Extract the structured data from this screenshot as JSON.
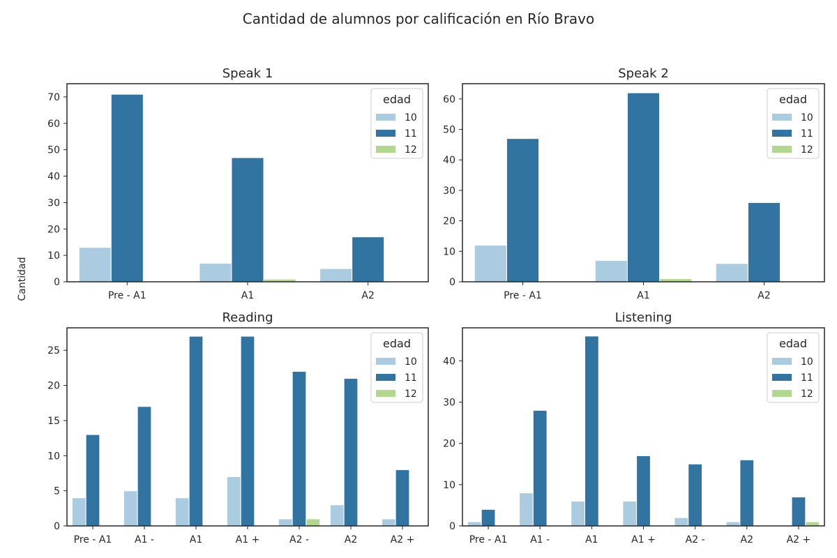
{
  "figure": {
    "title": "Cantidad de alumnos por calificación en Río Bravo",
    "ylabel": "Cantidad"
  },
  "colors": {
    "10": "#abcce0",
    "11": "#3274a1",
    "12": "#b2d88f",
    "axes": "#262626",
    "background": "#ffffff"
  },
  "chart_data": [
    {
      "type": "bar",
      "title": "Speak 1",
      "categories": [
        "Pre - A1",
        "A1",
        "A2"
      ],
      "legend_title": "edad",
      "legend_position": "top-right",
      "ylim": [
        0,
        75
      ],
      "yticks": [
        0,
        10,
        20,
        30,
        40,
        50,
        60,
        70
      ],
      "grid": false,
      "series": [
        {
          "name": "10",
          "values": [
            13,
            7,
            5
          ]
        },
        {
          "name": "11",
          "values": [
            71,
            47,
            17
          ]
        },
        {
          "name": "12",
          "values": [
            0,
            1,
            0
          ]
        }
      ]
    },
    {
      "type": "bar",
      "title": "Speak 2",
      "categories": [
        "Pre - A1",
        "A1",
        "A2"
      ],
      "legend_title": "edad",
      "legend_position": "top-right",
      "ylim": [
        0,
        65
      ],
      "yticks": [
        0,
        10,
        20,
        30,
        40,
        50,
        60
      ],
      "grid": false,
      "series": [
        {
          "name": "10",
          "values": [
            12,
            7,
            6
          ]
        },
        {
          "name": "11",
          "values": [
            47,
            62,
            26
          ]
        },
        {
          "name": "12",
          "values": [
            0,
            1,
            0
          ]
        }
      ]
    },
    {
      "type": "bar",
      "title": "Reading",
      "categories": [
        "Pre - A1",
        "A1 -",
        "A1",
        "A1 +",
        "A2 -",
        "A2",
        "A2 +"
      ],
      "legend_title": "edad",
      "legend_position": "top-right",
      "ylim": [
        0,
        28.2
      ],
      "yticks": [
        0,
        5,
        10,
        15,
        20,
        25
      ],
      "grid": false,
      "series": [
        {
          "name": "10",
          "values": [
            4,
            5,
            4,
            7,
            1,
            3,
            1
          ]
        },
        {
          "name": "11",
          "values": [
            13,
            17,
            27,
            27,
            22,
            21,
            8
          ]
        },
        {
          "name": "12",
          "values": [
            0,
            0,
            0,
            0,
            1,
            0,
            0
          ]
        }
      ]
    },
    {
      "type": "bar",
      "title": "Listening",
      "categories": [
        "Pre - A1",
        "A1 -",
        "A1",
        "A1 +",
        "A2 -",
        "A2",
        "A2 +"
      ],
      "legend_title": "edad",
      "legend_position": "top-right",
      "ylim": [
        0,
        48
      ],
      "yticks": [
        0,
        10,
        20,
        30,
        40
      ],
      "grid": false,
      "series": [
        {
          "name": "10",
          "values": [
            1,
            8,
            6,
            6,
            2,
            1,
            0
          ]
        },
        {
          "name": "11",
          "values": [
            4,
            28,
            46,
            17,
            15,
            16,
            7
          ]
        },
        {
          "name": "12",
          "values": [
            0,
            0,
            0,
            0,
            0,
            0,
            1
          ]
        }
      ]
    }
  ]
}
